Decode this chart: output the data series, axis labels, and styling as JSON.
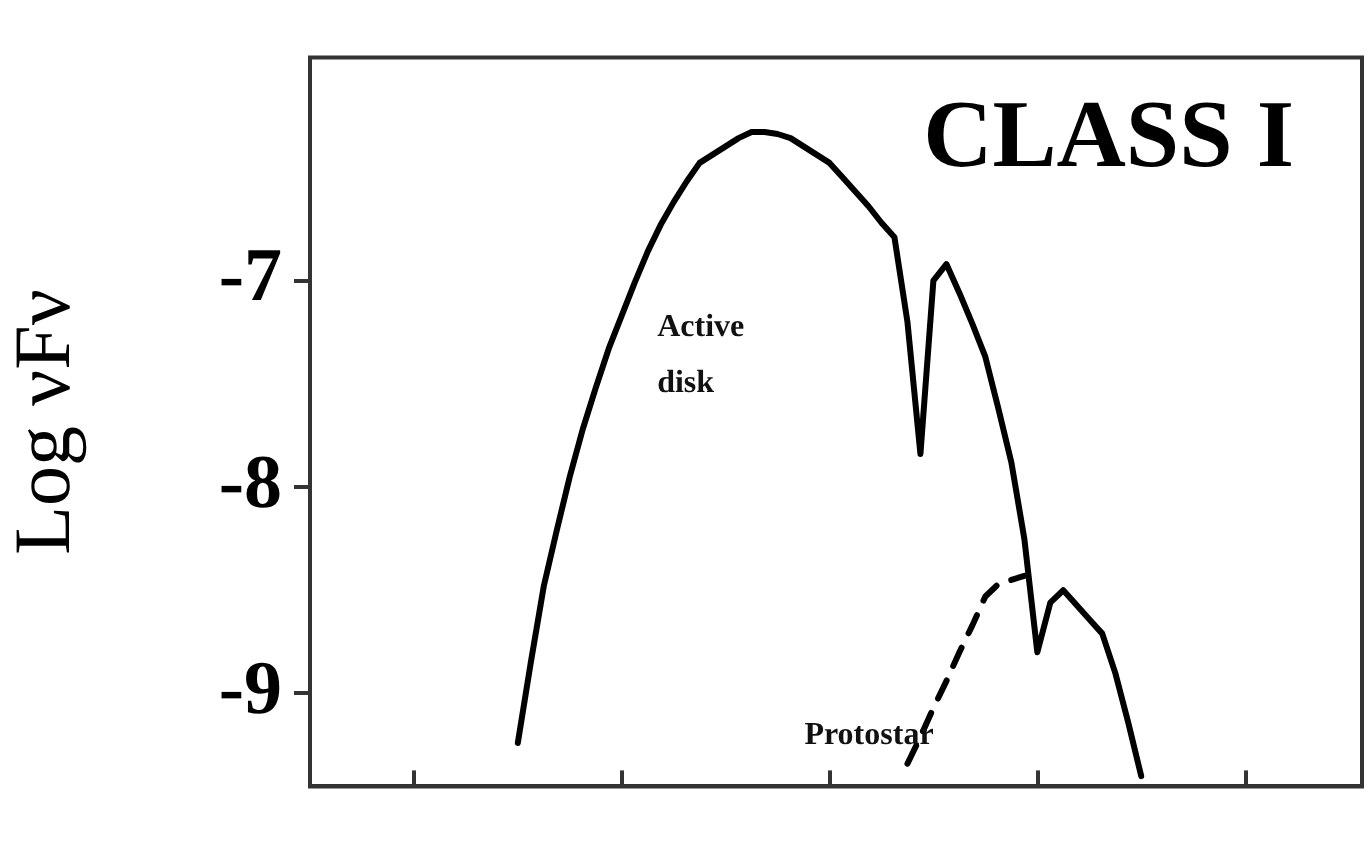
{
  "chart_data": {
    "type": "line",
    "title": "CLASS I",
    "ylabel": "Log νFν",
    "categories": [
      null,
      null,
      null,
      null,
      null,
      null,
      null,
      null,
      null,
      null,
      null,
      null,
      null,
      null,
      null,
      null,
      null,
      null,
      null,
      null,
      null,
      null,
      null,
      null,
      null,
      null,
      null,
      null,
      null,
      null,
      null,
      null,
      null,
      null,
      null,
      null,
      null,
      null,
      null,
      null,
      null,
      null,
      null,
      null,
      null,
      null,
      null,
      null,
      null,
      null,
      null,
      null,
      null,
      null,
      null,
      null,
      null,
      null,
      null,
      null,
      null,
      null,
      null,
      null,
      null,
      null,
      null,
      null,
      null,
      null,
      null,
      null,
      null,
      null,
      null,
      null,
      null,
      null,
      null,
      null,
      null,
      null
    ],
    "ylim": [
      -9.45,
      -5.92
    ],
    "yticks": [
      -7,
      -8,
      -9
    ],
    "grid": false,
    "legend": false,
    "marker": "none",
    "series": [
      {
        "color": "#000000",
        "line_style": "solid",
        "values": [
          null,
          null,
          null,
          null,
          null,
          null,
          null,
          null,
          null,
          null,
          null,
          null,
          null,
          null,
          null,
          null,
          -9.24,
          -8.85,
          -8.48,
          -8.21,
          -7.95,
          -7.72,
          -7.52,
          -7.33,
          -7.17,
          -7.01,
          -6.86,
          -6.73,
          -6.62,
          -6.52,
          -6.43,
          -6.39,
          -6.35,
          -6.31,
          -6.28,
          -6.28,
          -6.29,
          -6.31,
          -6.35,
          -6.39,
          -6.43,
          -6.5,
          -6.57,
          -6.64,
          -6.72,
          -6.79,
          -7.2,
          -7.84,
          -7.0,
          -6.92,
          -7.06,
          -7.21,
          -7.37,
          -7.62,
          -7.88,
          -8.25,
          -8.8,
          -8.56,
          -8.5,
          -8.57,
          -8.64,
          -8.71,
          -8.9,
          -9.14,
          -9.4,
          null,
          null,
          null,
          null,
          null,
          null,
          null,
          null,
          null,
          null,
          null,
          null,
          null,
          null,
          null,
          null,
          null
        ]
      },
      {
        "color": "#000000",
        "line_style": "dashed",
        "values": [
          null,
          null,
          null,
          null,
          null,
          null,
          null,
          null,
          null,
          null,
          null,
          null,
          null,
          null,
          null,
          null,
          null,
          null,
          null,
          null,
          null,
          null,
          null,
          null,
          null,
          null,
          null,
          null,
          null,
          null,
          null,
          null,
          null,
          null,
          null,
          null,
          null,
          null,
          null,
          null,
          null,
          null,
          null,
          null,
          null,
          null,
          -9.34,
          -9.21,
          -9.07,
          -8.94,
          -8.8,
          -8.67,
          -8.53,
          -8.47,
          -8.45,
          -8.43,
          null,
          null,
          null,
          null,
          null,
          null,
          null,
          null,
          null,
          null,
          null,
          null,
          null,
          null,
          null,
          null,
          null,
          null,
          null,
          null,
          null,
          null,
          null,
          null,
          null,
          null
        ]
      }
    ],
    "annotations": [
      "Active disk",
      "Protostar"
    ]
  }
}
